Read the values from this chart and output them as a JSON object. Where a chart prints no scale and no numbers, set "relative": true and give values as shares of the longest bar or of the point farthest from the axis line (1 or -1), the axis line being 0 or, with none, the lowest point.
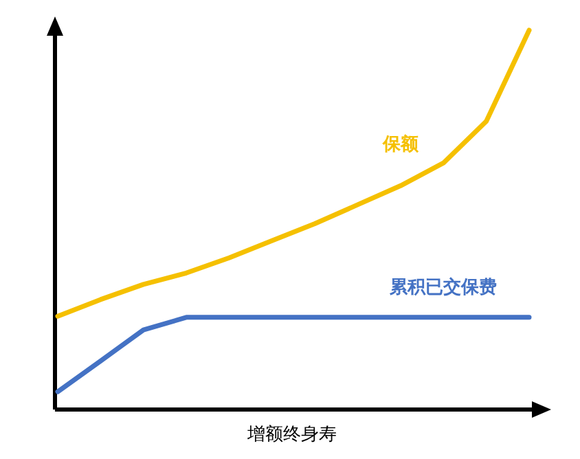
{
  "chart_data": {
    "type": "line",
    "relative": true,
    "xlabel": "增额终身寿",
    "categories": [
      null,
      null,
      null,
      null,
      null,
      null,
      null,
      null,
      null,
      null,
      null,
      null
    ],
    "series": [
      {
        "name": "保额",
        "color": "#f5c000",
        "values": [
          0.246,
          0.29,
          0.33,
          0.36,
          0.4,
          0.445,
          0.49,
          0.54,
          0.59,
          0.65,
          0.76,
          1
        ]
      },
      {
        "name": "累积已交保费",
        "color": "#4472c4",
        "values": [
          0.047,
          0.128,
          0.21,
          0.243,
          0.243,
          0.243,
          0.243,
          0.243,
          0.243,
          0.243,
          0.243,
          0.243
        ]
      }
    ],
    "marker": "none",
    "line_style": "solid"
  }
}
